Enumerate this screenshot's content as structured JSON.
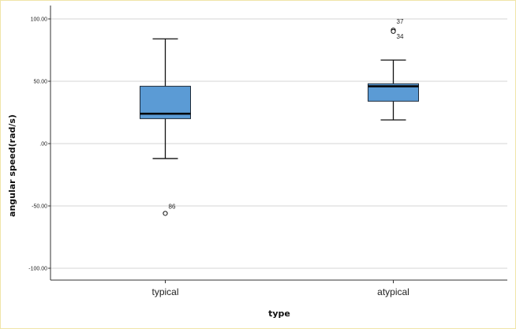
{
  "chart_data": {
    "type": "boxplot",
    "xlabel": "type",
    "ylabel": "angular speed(rad/s)",
    "ylim": [
      -112,
      112
    ],
    "yticks": [
      {
        "value": 100,
        "label": "100.00"
      },
      {
        "value": 50,
        "label": "50.00"
      },
      {
        "value": 0,
        "label": ".00"
      },
      {
        "value": -50,
        "label": "-50.00"
      },
      {
        "value": -100,
        "label": "-100.00"
      }
    ],
    "grid": true,
    "box_color": "#5b9bd5",
    "categories": [
      "typical",
      "atypical"
    ],
    "boxes": [
      {
        "category": "typical",
        "whisker_low": -12,
        "q1": 20,
        "median": 24,
        "q3": 46,
        "whisker_high": 84,
        "outliers": [
          {
            "value": -56,
            "label": "86"
          }
        ]
      },
      {
        "category": "atypical",
        "whisker_low": 19,
        "q1": 34,
        "median": 46,
        "q3": 48,
        "whisker_high": 67,
        "outliers": [
          {
            "value": 91,
            "label": "37"
          },
          {
            "value": 90,
            "label": "34"
          }
        ]
      }
    ]
  }
}
